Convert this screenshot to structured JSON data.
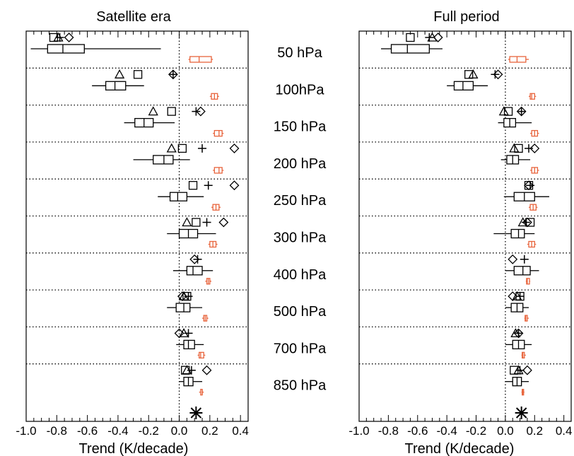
{
  "chart_data": [
    {
      "type": "box",
      "title": "Satellite era",
      "xlabel": "Trend (K/decade)",
      "xlim": [
        -1.0,
        0.45
      ],
      "ticks": [
        "-1.0",
        "-0.8",
        "-0.6",
        "-0.4",
        "-0.2",
        "0.0",
        "0.2",
        "0.4"
      ],
      "tick_values": [
        -1.0,
        -0.8,
        -0.6,
        -0.4,
        -0.2,
        0.0,
        0.2,
        0.4
      ],
      "levels": [
        "50 hPa",
        "100hPa",
        "150 hPa",
        "200 hPa",
        "250 hPa",
        "300 hPa",
        "400 hPa",
        "500 hPa",
        "700 hPa",
        "850 hPa"
      ],
      "markers": [
        {
          "square": -0.82,
          "triangle": -0.79,
          "plus": -0.78,
          "diamond": -0.72
        },
        {
          "square": -0.27,
          "triangle": -0.39,
          "plus": -0.04,
          "diamond": -0.04
        },
        {
          "square": -0.05,
          "triangle": -0.17,
          "plus": 0.11,
          "diamond": 0.14
        },
        {
          "square": 0.02,
          "triangle": -0.05,
          "plus": 0.15,
          "diamond": 0.36
        },
        {
          "square": 0.09,
          "triangle": null,
          "plus": 0.19,
          "diamond": 0.36
        },
        {
          "square": 0.11,
          "triangle": 0.05,
          "plus": 0.18,
          "diamond": 0.29
        },
        {
          "square": null,
          "triangle": null,
          "plus": 0.12,
          "diamond": 0.1
        },
        {
          "square": 0.05,
          "triangle": 0.03,
          "plus": 0.06,
          "diamond": 0.02
        },
        {
          "square": null,
          "triangle": 0.03,
          "plus": 0.06,
          "diamond": 0.0
        },
        {
          "square": 0.04,
          "triangle": 0.05,
          "plus": 0.08,
          "diamond": 0.18
        }
      ],
      "boxes_black": [
        {
          "whislo": -0.97,
          "q1": -0.86,
          "med": -0.76,
          "q3": -0.62,
          "whishi": -0.12
        },
        {
          "whislo": -0.57,
          "q1": -0.48,
          "med": -0.42,
          "q3": -0.35,
          "whishi": -0.23
        },
        {
          "whislo": -0.36,
          "q1": -0.29,
          "med": -0.23,
          "q3": -0.17,
          "whishi": -0.03
        },
        {
          "whislo": -0.3,
          "q1": -0.17,
          "med": -0.1,
          "q3": -0.04,
          "whishi": 0.07
        },
        {
          "whislo": -0.14,
          "q1": -0.06,
          "med": -0.01,
          "q3": 0.05,
          "whishi": 0.16
        },
        {
          "whislo": -0.08,
          "q1": 0.0,
          "med": 0.06,
          "q3": 0.12,
          "whishi": 0.24
        },
        {
          "whislo": -0.04,
          "q1": 0.05,
          "med": 0.09,
          "q3": 0.15,
          "whishi": 0.22
        },
        {
          "whislo": -0.08,
          "q1": -0.02,
          "med": 0.03,
          "q3": 0.07,
          "whishi": 0.15
        },
        {
          "whislo": -0.02,
          "q1": 0.03,
          "med": 0.06,
          "q3": 0.1,
          "whishi": 0.16
        },
        {
          "whislo": 0.0,
          "q1": 0.03,
          "med": 0.06,
          "q3": 0.09,
          "whishi": 0.15
        }
      ],
      "boxes_orange": [
        {
          "whislo": 0.06,
          "q1": 0.07,
          "med": 0.13,
          "q3": 0.21,
          "whishi": 0.22
        },
        {
          "whislo": 0.2,
          "q1": 0.21,
          "med": 0.23,
          "q3": 0.25,
          "whishi": 0.26
        },
        {
          "whislo": 0.22,
          "q1": 0.23,
          "med": 0.26,
          "q3": 0.28,
          "whishi": 0.29
        },
        {
          "whislo": 0.22,
          "q1": 0.23,
          "med": 0.26,
          "q3": 0.28,
          "whishi": 0.29
        },
        {
          "whislo": 0.21,
          "q1": 0.22,
          "med": 0.24,
          "q3": 0.26,
          "whishi": 0.27
        },
        {
          "whislo": 0.19,
          "q1": 0.2,
          "med": 0.22,
          "q3": 0.24,
          "whishi": 0.25
        },
        {
          "whislo": 0.17,
          "q1": 0.18,
          "med": 0.19,
          "q3": 0.2,
          "whishi": 0.21
        },
        {
          "whislo": 0.15,
          "q1": 0.16,
          "med": 0.17,
          "q3": 0.18,
          "whishi": 0.19
        },
        {
          "whislo": 0.12,
          "q1": 0.13,
          "med": 0.14,
          "q3": 0.16,
          "whishi": 0.17
        },
        {
          "whislo": 0.13,
          "q1": 0.14,
          "med": 0.15,
          "q3": 0.15,
          "whishi": 0.16
        }
      ],
      "star": 0.11
    },
    {
      "type": "box",
      "title": "Full period",
      "xlabel": "Trend (K/decade)",
      "xlim": [
        -1.0,
        0.45
      ],
      "ticks": [
        "-1.0",
        "-0.8",
        "-0.6",
        "-0.4",
        "-0.2",
        "0.0",
        "0.2",
        "0.4"
      ],
      "tick_values": [
        -1.0,
        -0.8,
        -0.6,
        -0.4,
        -0.2,
        0.0,
        0.2,
        0.4
      ],
      "markers": [
        {
          "square": -0.65,
          "triangle": -0.5,
          "plus": -0.52,
          "diamond": -0.46
        },
        {
          "square": -0.25,
          "triangle": -0.22,
          "plus": -0.07,
          "diamond": -0.05
        },
        {
          "square": 0.02,
          "triangle": -0.01,
          "plus": 0.11,
          "diamond": 0.11
        },
        {
          "square": 0.09,
          "triangle": 0.06,
          "plus": 0.16,
          "diamond": 0.2
        },
        {
          "square": 0.16,
          "triangle": null,
          "plus": 0.17,
          "diamond": 0.16
        },
        {
          "square": 0.17,
          "triangle": 0.12,
          "plus": 0.14,
          "diamond": 0.15
        },
        {
          "square": null,
          "triangle": null,
          "plus": 0.13,
          "diamond": 0.05
        },
        {
          "square": 0.1,
          "triangle": 0.08,
          "plus": 0.1,
          "diamond": 0.05
        },
        {
          "square": null,
          "triangle": 0.07,
          "plus": 0.09,
          "diamond": 0.09
        },
        {
          "square": 0.06,
          "triangle": 0.09,
          "plus": 0.1,
          "diamond": 0.15
        }
      ],
      "boxes_black": [
        {
          "whislo": -0.85,
          "q1": -0.78,
          "med": -0.67,
          "q3": -0.52,
          "whishi": -0.43
        },
        {
          "whislo": -0.4,
          "q1": -0.35,
          "med": -0.29,
          "q3": -0.22,
          "whishi": -0.12
        },
        {
          "whislo": -0.05,
          "q1": -0.01,
          "med": 0.03,
          "q3": 0.07,
          "whishi": 0.18
        },
        {
          "whislo": -0.03,
          "q1": 0.01,
          "med": 0.05,
          "q3": 0.09,
          "whishi": 0.17
        },
        {
          "whislo": -0.01,
          "q1": 0.06,
          "med": 0.13,
          "q3": 0.2,
          "whishi": 0.3
        },
        {
          "whislo": -0.08,
          "q1": 0.04,
          "med": 0.09,
          "q3": 0.13,
          "whishi": 0.2
        },
        {
          "whislo": 0.0,
          "q1": 0.06,
          "med": 0.12,
          "q3": 0.17,
          "whishi": 0.23
        },
        {
          "whislo": 0.0,
          "q1": 0.04,
          "med": 0.08,
          "q3": 0.12,
          "whishi": 0.16
        },
        {
          "whislo": 0.0,
          "q1": 0.05,
          "med": 0.09,
          "q3": 0.13,
          "whishi": 0.18
        },
        {
          "whislo": 0.0,
          "q1": 0.05,
          "med": 0.08,
          "q3": 0.11,
          "whishi": 0.16
        }
      ],
      "boxes_orange": [
        {
          "whislo": 0.02,
          "q1": 0.03,
          "med": 0.08,
          "q3": 0.14,
          "whishi": 0.16
        },
        {
          "whislo": 0.16,
          "q1": 0.17,
          "med": 0.18,
          "q3": 0.2,
          "whishi": 0.21
        },
        {
          "whislo": 0.17,
          "q1": 0.18,
          "med": 0.2,
          "q3": 0.22,
          "whishi": 0.23
        },
        {
          "whislo": 0.17,
          "q1": 0.18,
          "med": 0.2,
          "q3": 0.22,
          "whishi": 0.23
        },
        {
          "whislo": 0.16,
          "q1": 0.17,
          "med": 0.19,
          "q3": 0.21,
          "whishi": 0.22
        },
        {
          "whislo": 0.15,
          "q1": 0.16,
          "med": 0.18,
          "q3": 0.2,
          "whishi": 0.21
        },
        {
          "whislo": 0.14,
          "q1": 0.145,
          "med": 0.15,
          "q3": 0.165,
          "whishi": 0.17
        },
        {
          "whislo": 0.13,
          "q1": 0.135,
          "med": 0.14,
          "q3": 0.15,
          "whishi": 0.16
        },
        {
          "whislo": 0.11,
          "q1": 0.115,
          "med": 0.12,
          "q3": 0.13,
          "whishi": 0.14
        },
        {
          "whislo": 0.11,
          "q1": 0.115,
          "med": 0.12,
          "q3": 0.125,
          "whishi": 0.13
        }
      ],
      "star": 0.11
    }
  ],
  "colors": {
    "orange": "#e8643c",
    "black": "#000000"
  }
}
